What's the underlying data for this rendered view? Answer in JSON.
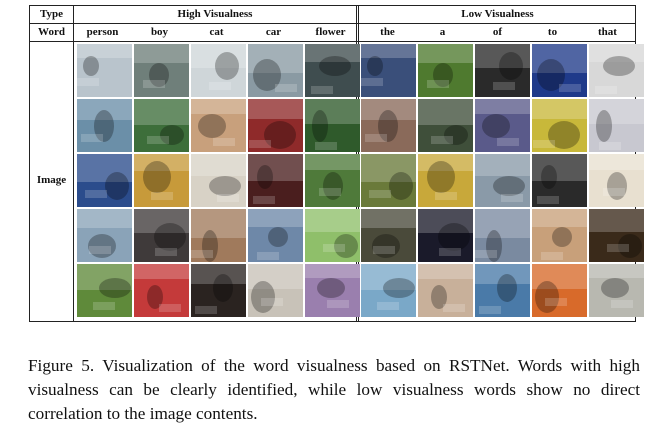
{
  "table": {
    "type_header": "Type",
    "word_header": "Word",
    "image_header": "Image",
    "high_group": {
      "title": "High Visualness",
      "words": [
        "person",
        "boy",
        "cat",
        "car",
        "flower"
      ]
    },
    "low_group": {
      "title": "Low Visualness",
      "words": [
        "the",
        "a",
        "of",
        "to",
        "that"
      ]
    }
  },
  "caption": {
    "text": "Figure 5. Visualization of the word visualness based on RSTNet. Words with high visualness can be clearly identified, while low visualness words show no direct correlation to the image contents."
  }
}
